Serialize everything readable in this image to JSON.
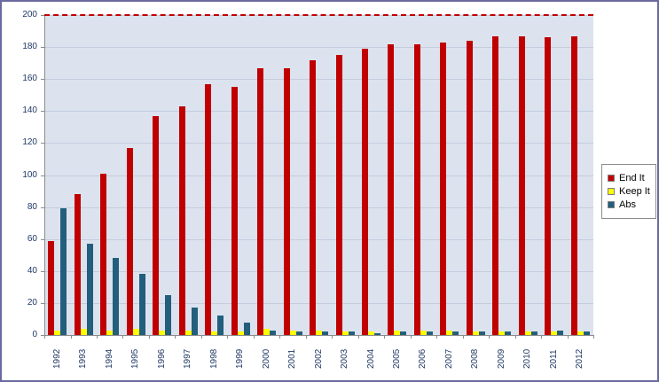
{
  "chart_data": {
    "type": "bar",
    "title": "",
    "categories": [
      "1992",
      "1993",
      "1994",
      "1995",
      "1996",
      "1997",
      "1998",
      "1999",
      "2000",
      "2001",
      "2002",
      "2003",
      "2004",
      "2005",
      "2006",
      "2007",
      "2008",
      "2009",
      "2010",
      "2011",
      "2012"
    ],
    "series": [
      {
        "name": "End It",
        "color": "#C00000",
        "values": [
          59,
          88,
          101,
          117,
          137,
          143,
          157,
          155,
          167,
          167,
          172,
          175,
          179,
          182,
          182,
          183,
          184,
          187,
          187,
          186,
          187
        ]
      },
      {
        "name": "Keep It",
        "color": "#FFFF00",
        "values": [
          3,
          4,
          3,
          4,
          3,
          3,
          2,
          2,
          4,
          3,
          3,
          2,
          2,
          3,
          3,
          3,
          2,
          2,
          2,
          2,
          2
        ]
      },
      {
        "name": "Abs",
        "color": "#235E7D",
        "values": [
          79,
          57,
          48,
          38,
          25,
          17,
          12,
          8,
          3,
          2,
          2,
          2,
          1,
          2,
          2,
          2,
          2,
          2,
          2,
          3,
          2
        ]
      }
    ],
    "xlabel": "",
    "ylabel": "",
    "ylim": [
      0,
      200
    ],
    "ytick_step": 20,
    "y_tick_labels": [
      "0",
      "20",
      "40",
      "60",
      "80",
      "100",
      "120",
      "140",
      "160",
      "180",
      "200"
    ],
    "grid": true,
    "legend": {
      "position": "right",
      "entries": [
        "End It",
        "Keep It",
        "Abs"
      ]
    },
    "reference_line": {
      "value": 200,
      "color": "#C00000",
      "style": "dashed"
    },
    "colors": {
      "plot_bg": "#DCE3EF",
      "chart_bg": "#FFFFFF",
      "gridline": "#C4CDDE",
      "axis": "#8C8C8C",
      "label": "#1F3864",
      "frame_border": "#6A6AA0"
    }
  }
}
